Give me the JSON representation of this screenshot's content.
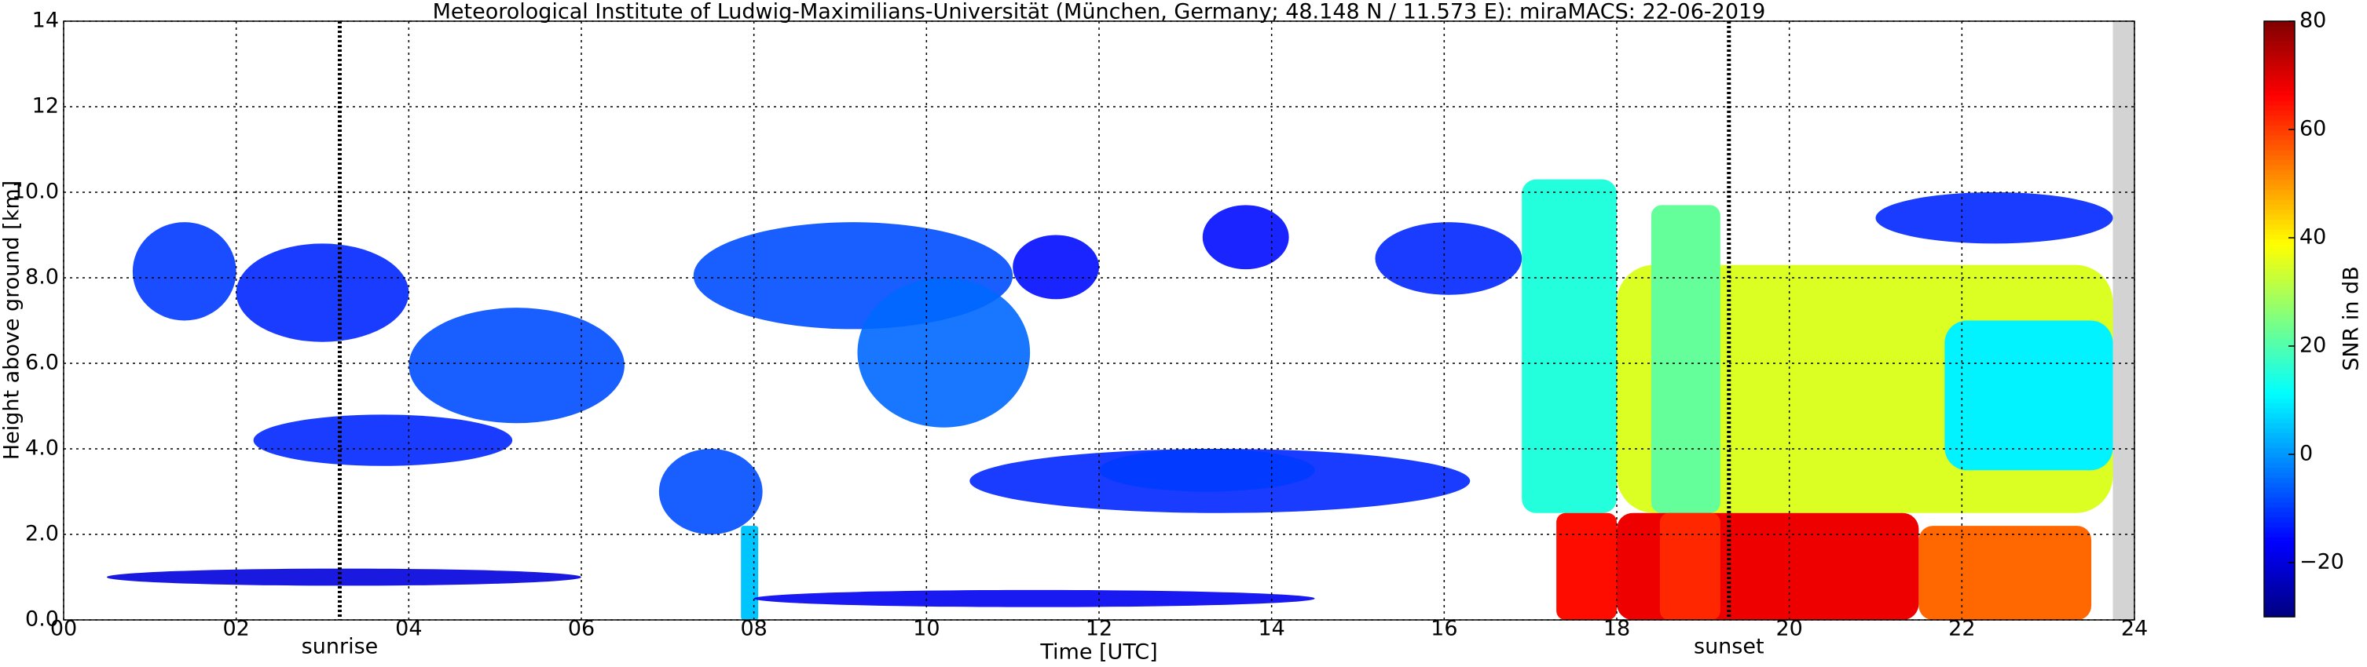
{
  "chart_data": {
    "type": "heatmap",
    "title": "Meteorological Institute of Ludwig-Maximilians-Universität (München, Germany; 48.148 N / 11.573 E):    miraMACS: 22-06-2019",
    "xlabel": "Time [UTC]",
    "ylabel": "Height above ground [km]",
    "colorbar_label": "SNR in dB",
    "colormap": "jet",
    "grid": true,
    "xlim": [
      0,
      24
    ],
    "ylim": [
      0,
      14
    ],
    "clim": [
      -30,
      80
    ],
    "xticks": [
      {
        "value": 0,
        "label": "00"
      },
      {
        "value": 2,
        "label": "02"
      },
      {
        "value": 4,
        "label": "04"
      },
      {
        "value": 6,
        "label": "06"
      },
      {
        "value": 8,
        "label": "08"
      },
      {
        "value": 10,
        "label": "10"
      },
      {
        "value": 12,
        "label": "12"
      },
      {
        "value": 14,
        "label": "14"
      },
      {
        "value": 16,
        "label": "16"
      },
      {
        "value": 18,
        "label": "18"
      },
      {
        "value": 20,
        "label": "20"
      },
      {
        "value": 22,
        "label": "22"
      },
      {
        "value": 24,
        "label": "24"
      }
    ],
    "yticks": [
      {
        "value": 0,
        "label": "0.0"
      },
      {
        "value": 2,
        "label": "2.0"
      },
      {
        "value": 4,
        "label": "4.0"
      },
      {
        "value": 6,
        "label": "6.0"
      },
      {
        "value": 8,
        "label": "8.0"
      },
      {
        "value": 10,
        "label": "10.0"
      },
      {
        "value": 12,
        "label": "12"
      },
      {
        "value": 14,
        "label": "14"
      }
    ],
    "cticks": [
      {
        "value": -20,
        "label": "−20"
      },
      0,
      20,
      40,
      60,
      80
    ],
    "annotations": [
      {
        "text": "sunrise",
        "x": 3.2
      },
      {
        "text": "sunset",
        "x": 19.3
      }
    ],
    "no_data": [
      23.75,
      24
    ],
    "echoes": [
      {
        "t0": 0.8,
        "t1": 2.0,
        "h0": 7.0,
        "h1": 9.3,
        "snr": -10
      },
      {
        "t0": 2.0,
        "t1": 4.0,
        "h0": 6.5,
        "h1": 8.8,
        "snr": -12
      },
      {
        "t0": 4.0,
        "t1": 6.5,
        "h0": 4.6,
        "h1": 7.3,
        "snr": -8
      },
      {
        "t0": 2.2,
        "t1": 5.2,
        "h0": 3.6,
        "h1": 4.8,
        "snr": -12
      },
      {
        "t0": 7.3,
        "t1": 11.0,
        "h0": 6.8,
        "h1": 9.3,
        "snr": -8
      },
      {
        "t0": 9.2,
        "t1": 11.2,
        "h0": 4.5,
        "h1": 8.0,
        "snr": -5
      },
      {
        "t0": 6.9,
        "t1": 8.1,
        "h0": 2.0,
        "h1": 4.0,
        "snr": -8
      },
      {
        "t0": 7.85,
        "t1": 8.05,
        "h0": 0,
        "h1": 2.2,
        "snr": 5
      },
      {
        "t0": 11.0,
        "t1": 12.0,
        "h0": 7.5,
        "h1": 9.0,
        "snr": -15
      },
      {
        "t0": 13.2,
        "t1": 14.2,
        "h0": 8.2,
        "h1": 9.7,
        "snr": -15
      },
      {
        "t0": 15.2,
        "t1": 16.9,
        "h0": 7.6,
        "h1": 9.3,
        "snr": -12
      },
      {
        "t0": 10.5,
        "t1": 16.3,
        "h0": 2.5,
        "h1": 4.0,
        "snr": -12
      },
      {
        "t0": 12.0,
        "t1": 14.5,
        "h0": 3.0,
        "h1": 4.0,
        "snr": -10
      },
      {
        "t0": 8.0,
        "t1": 14.5,
        "h0": 0.3,
        "h1": 0.7,
        "snr": -18
      },
      {
        "t0": 0.5,
        "t1": 6.0,
        "h0": 0.8,
        "h1": 1.2,
        "snr": -20
      },
      {
        "t0": 18.0,
        "t1": 23.75,
        "h0": 2.5,
        "h1": 8.3,
        "snr": 35
      },
      {
        "t0": 16.9,
        "t1": 18.0,
        "h0": 2.5,
        "h1": 10.3,
        "snr": 15
      },
      {
        "t0": 18.4,
        "t1": 19.2,
        "h0": 2.5,
        "h1": 9.7,
        "snr": 22
      },
      {
        "t0": 21.8,
        "t1": 23.75,
        "h0": 3.5,
        "h1": 7.0,
        "snr": 10
      },
      {
        "t0": 21.0,
        "t1": 23.75,
        "h0": 8.8,
        "h1": 10.0,
        "snr": -12
      },
      {
        "t0": 17.3,
        "t1": 18.0,
        "h0": 0,
        "h1": 2.5,
        "snr": 65
      },
      {
        "t0": 18.0,
        "t1": 21.5,
        "h0": 0,
        "h1": 2.5,
        "snr": 68
      },
      {
        "t0": 21.5,
        "t1": 23.5,
        "h0": 0,
        "h1": 2.2,
        "snr": 55
      },
      {
        "t0": 18.5,
        "t1": 19.2,
        "h0": 0,
        "h1": 2.5,
        "snr": 62
      }
    ]
  }
}
